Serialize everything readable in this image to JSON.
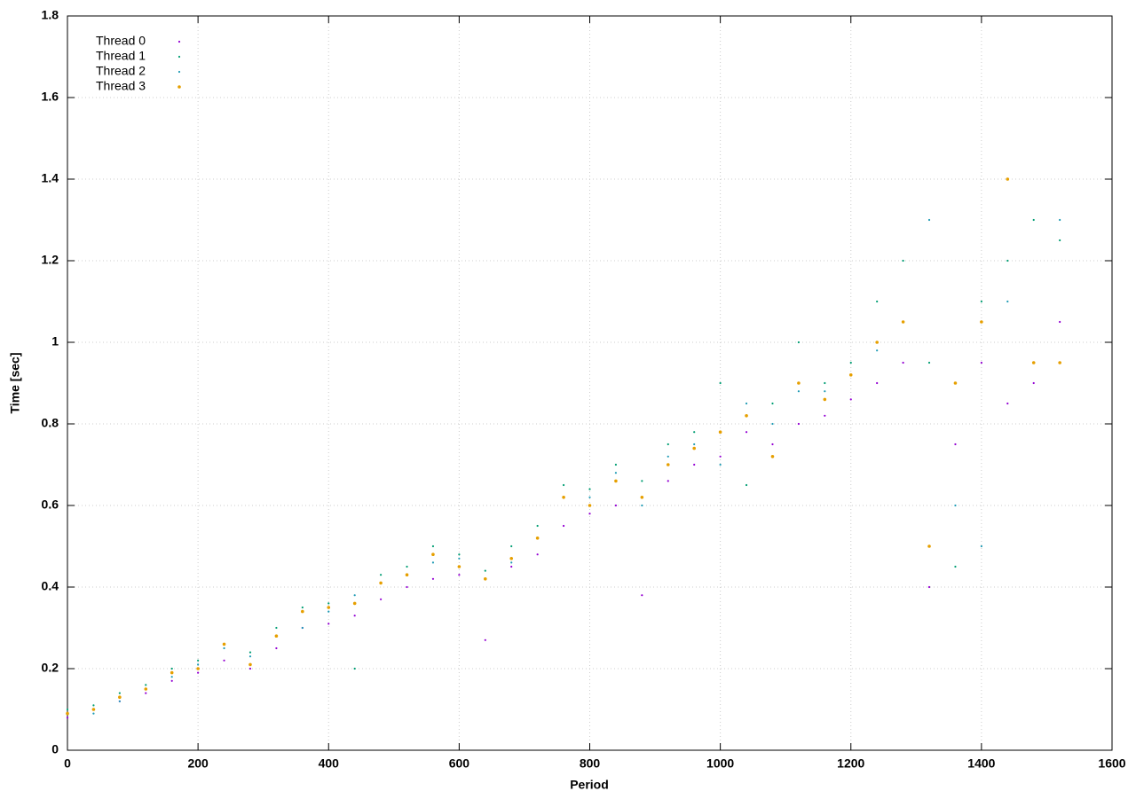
{
  "chart_data": {
    "type": "scatter",
    "xlabel": "Period",
    "ylabel": "Time [sec]",
    "x": [
      0,
      40,
      80,
      120,
      160,
      200,
      240,
      280,
      320,
      360,
      400,
      440,
      480,
      520,
      560,
      600,
      640,
      680,
      720,
      760,
      800,
      840,
      880,
      920,
      960,
      1000,
      1040,
      1080,
      1120,
      1160,
      1200,
      1240,
      1280,
      1320,
      1360,
      1400,
      1440,
      1480,
      1520
    ],
    "series": [
      {
        "name": "Thread 0",
        "color": "#9400d3",
        "values": [
          0.08,
          0.1,
          0.12,
          0.14,
          0.17,
          0.19,
          0.22,
          0.2,
          0.25,
          0.3,
          0.31,
          0.33,
          0.37,
          0.4,
          0.42,
          0.43,
          0.27,
          0.45,
          0.48,
          0.55,
          0.58,
          0.6,
          0.38,
          0.66,
          0.7,
          0.72,
          0.78,
          0.75,
          0.8,
          0.82,
          0.86,
          0.9,
          0.95,
          0.4,
          0.75,
          0.95,
          0.85,
          0.9,
          1.05
        ]
      },
      {
        "name": "Thread 1",
        "color": "#009e73",
        "values": [
          0.1,
          0.11,
          0.14,
          0.16,
          0.2,
          0.22,
          0.26,
          0.24,
          0.3,
          0.35,
          0.36,
          0.2,
          0.43,
          0.45,
          0.5,
          0.48,
          0.44,
          0.5,
          0.55,
          0.65,
          0.64,
          0.7,
          0.66,
          0.75,
          0.78,
          0.9,
          0.65,
          0.85,
          1.0,
          0.9,
          0.95,
          1.1,
          1.2,
          0.95,
          0.45,
          1.1,
          1.2,
          1.3,
          1.25
        ]
      },
      {
        "name": "Thread 2",
        "color": "#1f9bb5",
        "values": [
          0.09,
          0.09,
          0.12,
          0.15,
          0.18,
          0.21,
          0.25,
          0.23,
          0.28,
          0.3,
          0.34,
          0.38,
          0.41,
          0.43,
          0.46,
          0.47,
          0.42,
          0.46,
          0.52,
          0.62,
          0.62,
          0.68,
          0.6,
          0.72,
          0.75,
          0.7,
          0.85,
          0.8,
          0.88,
          0.88,
          0.92,
          0.98,
          1.05,
          1.3,
          0.6,
          0.5,
          1.1,
          0.95,
          1.3
        ]
      },
      {
        "name": "Thread 3",
        "color": "#e69f00",
        "values": [
          0.09,
          0.1,
          0.13,
          0.15,
          0.19,
          0.2,
          0.26,
          0.21,
          0.28,
          0.34,
          0.35,
          0.36,
          0.41,
          0.43,
          0.48,
          0.45,
          0.42,
          0.47,
          0.52,
          0.62,
          0.6,
          0.66,
          0.62,
          0.7,
          0.74,
          0.78,
          0.82,
          0.72,
          0.9,
          0.86,
          0.92,
          1.0,
          1.05,
          0.5,
          0.9,
          1.05,
          1.4,
          0.95,
          0.95
        ]
      }
    ],
    "xlim": [
      0,
      1600
    ],
    "xticks": [
      0,
      200,
      400,
      600,
      800,
      1000,
      1200,
      1400,
      1600
    ],
    "ylim": [
      0,
      1.8
    ],
    "yticks": [
      0,
      0.2,
      0.4,
      0.6,
      0.8,
      1,
      1.2,
      1.4,
      1.6,
      1.8
    ],
    "grid": true,
    "legend": "top-left"
  }
}
